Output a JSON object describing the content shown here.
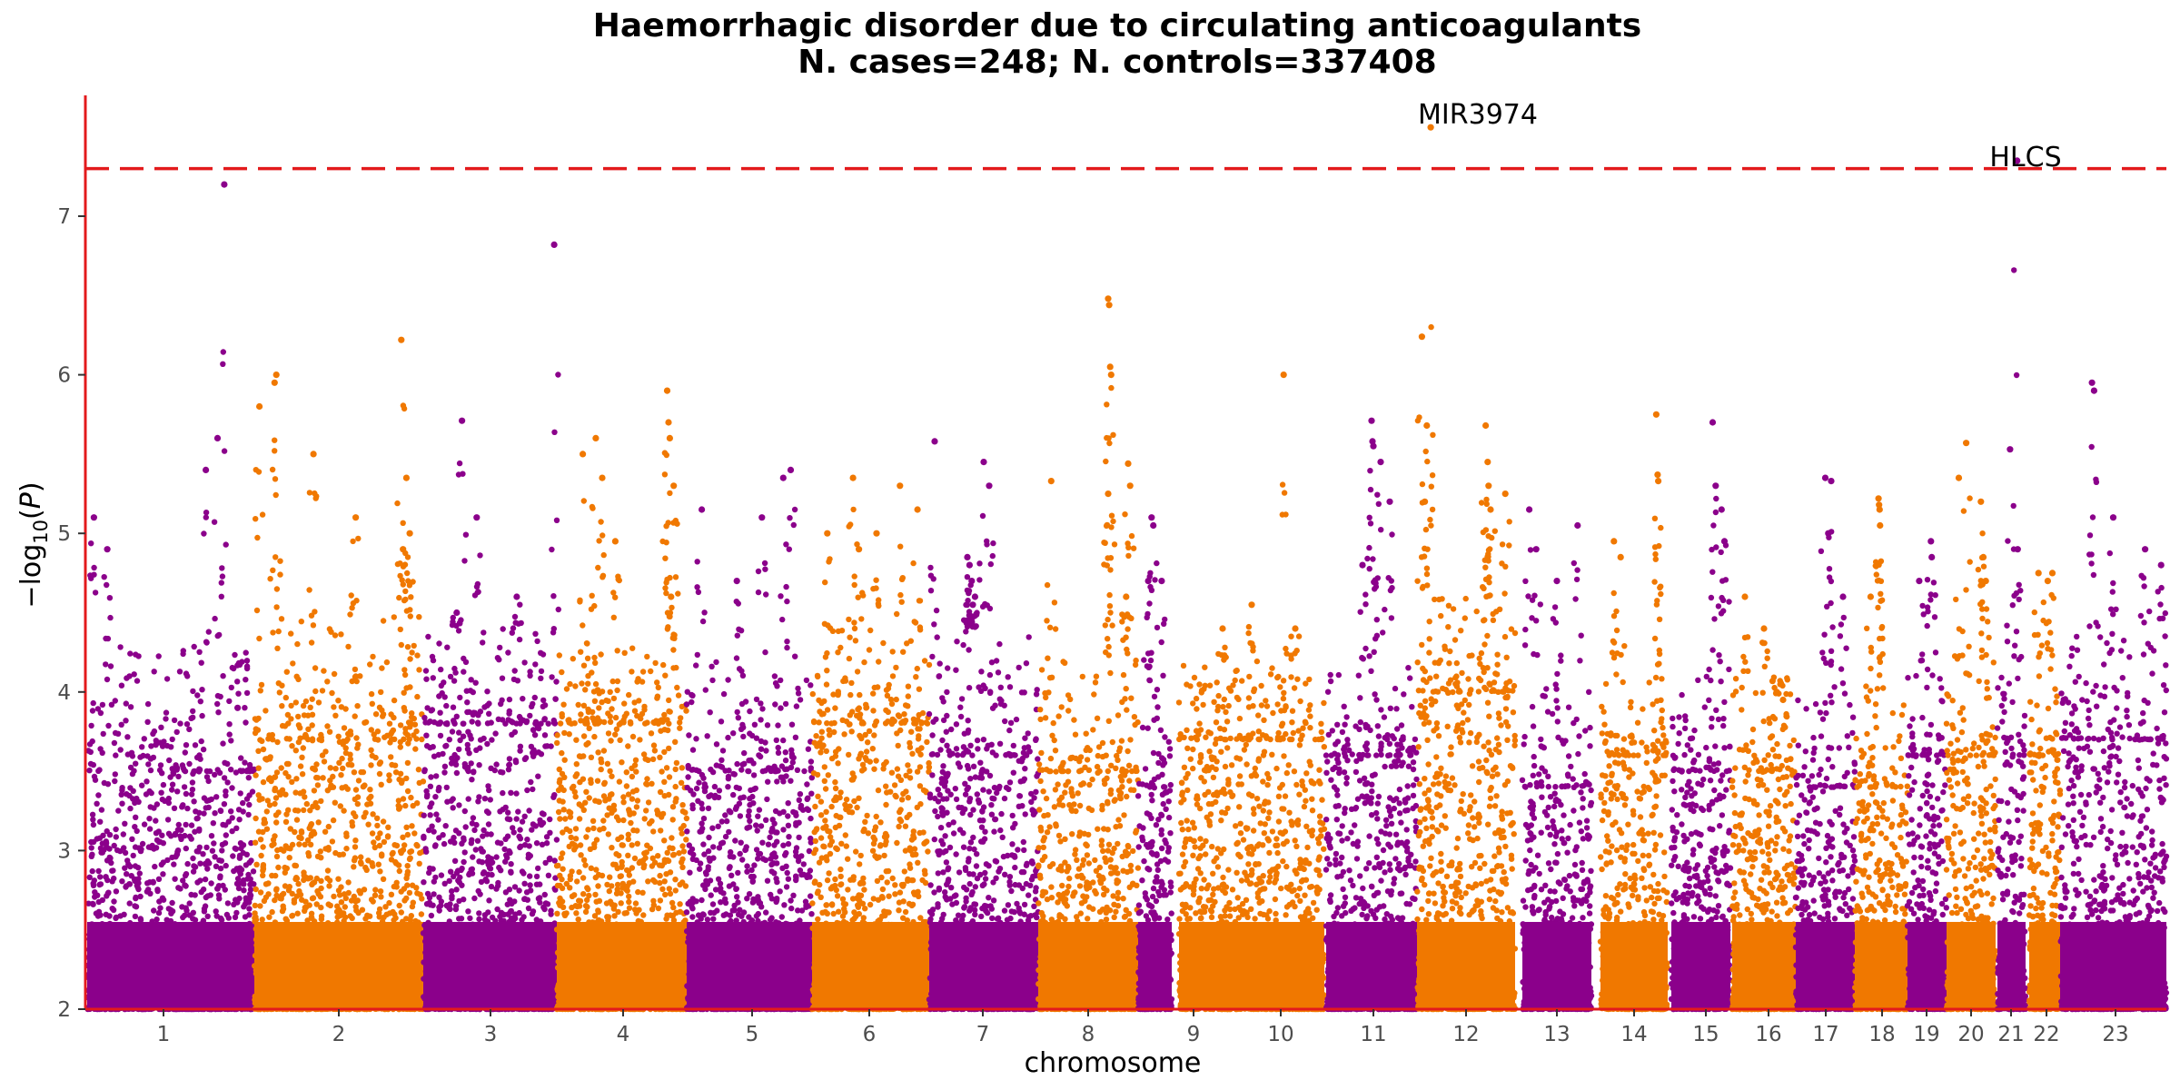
{
  "chart_data": {
    "type": "scatter",
    "subtype": "manhattan",
    "title": "Haemorrhagic disorder due to circulating anticoagulants",
    "subtitle": "N. cases=248; N. controls=337408",
    "xlabel": "chromosome",
    "ylabel": "−log10(P)",
    "ylim": [
      2,
      7.8
    ],
    "yticks": [
      "2",
      "3",
      "4",
      "5",
      "6",
      "7"
    ],
    "significance_threshold": 7.3,
    "threshold_color": "#e31a1c",
    "axis_color": "#e31a1c",
    "colors": {
      "odd": "#8b008b",
      "even": "#f07800"
    },
    "grid": false,
    "legend": "none",
    "chromosomes": [
      {
        "label": "1",
        "color": "odd",
        "floor_max": 3.5,
        "cap": 4.3,
        "peaks": [
          [
            0.04,
            5.1
          ],
          [
            0.12,
            4.9
          ],
          [
            0.78,
            5.6
          ],
          [
            0.82,
            7.2
          ],
          [
            0.71,
            5.4
          ],
          [
            0.9,
            3.9
          ]
        ]
      },
      {
        "label": "2",
        "color": "even",
        "floor_max": 3.7,
        "cap": 4.5,
        "peaks": [
          [
            0.03,
            5.8
          ],
          [
            0.12,
            5.95
          ],
          [
            0.13,
            6.0
          ],
          [
            0.35,
            5.5
          ],
          [
            0.6,
            5.1
          ],
          [
            0.87,
            6.22
          ],
          [
            0.9,
            5.35
          ],
          [
            0.92,
            5.0
          ],
          [
            0.88,
            4.9
          ]
        ]
      },
      {
        "label": "3",
        "color": "odd",
        "floor_max": 3.8,
        "cap": 4.4,
        "peaks": [
          [
            0.29,
            5.71
          ],
          [
            0.4,
            5.1
          ],
          [
            0.98,
            6.82
          ],
          [
            0.25,
            4.5
          ],
          [
            0.7,
            4.6
          ]
        ]
      },
      {
        "label": "4",
        "color": "even",
        "floor_max": 3.8,
        "cap": 4.3,
        "peaks": [
          [
            0.2,
            5.5
          ],
          [
            0.3,
            5.6
          ],
          [
            0.35,
            5.35
          ],
          [
            0.45,
            4.95
          ],
          [
            0.85,
            5.9
          ],
          [
            0.86,
            5.7
          ],
          [
            0.87,
            5.6
          ],
          [
            0.9,
            5.3
          ],
          [
            0.88,
            4.6
          ]
        ]
      },
      {
        "label": "5",
        "color": "odd",
        "floor_max": 3.5,
        "cap": 4.2,
        "peaks": [
          [
            0.12,
            5.15
          ],
          [
            0.6,
            5.1
          ],
          [
            0.77,
            5.35
          ],
          [
            0.83,
            5.4
          ],
          [
            0.4,
            4.7
          ]
        ]
      },
      {
        "label": "6",
        "color": "even",
        "floor_max": 3.8,
        "cap": 4.4,
        "peaks": [
          [
            0.13,
            5.0
          ],
          [
            0.35,
            5.35
          ],
          [
            0.4,
            4.9
          ],
          [
            0.55,
            5.0
          ],
          [
            0.75,
            5.3
          ],
          [
            0.9,
            5.15
          ]
        ]
      },
      {
        "label": "7",
        "color": "odd",
        "floor_max": 3.6,
        "cap": 4.4,
        "peaks": [
          [
            0.05,
            5.58
          ],
          [
            0.35,
            4.85
          ],
          [
            0.37,
            4.8
          ],
          [
            0.39,
            4.7
          ],
          [
            0.4,
            4.55
          ],
          [
            0.42,
            4.6
          ],
          [
            0.5,
            5.45
          ],
          [
            0.55,
            5.3
          ]
        ]
      },
      {
        "label": "8",
        "color": "even",
        "floor_max": 3.5,
        "cap": 4.2,
        "peaks": [
          [
            0.13,
            5.33
          ],
          [
            0.7,
            6.48
          ],
          [
            0.71,
            6.44
          ],
          [
            0.72,
            6.05
          ],
          [
            0.73,
            6.0
          ],
          [
            0.7,
            5.25
          ],
          [
            0.9,
            5.44
          ],
          [
            0.92,
            5.3
          ],
          [
            0.88,
            4.6
          ]
        ]
      },
      {
        "label": "9",
        "color": "odd",
        "floor_max": 3.4,
        "cap": 4.0,
        "peaks": [
          [
            0.4,
            5.1
          ],
          [
            0.45,
            5.05
          ],
          [
            0.3,
            4.7
          ],
          [
            0.7,
            4.7
          ]
        ]
      },
      {
        "label": "10",
        "color": "even",
        "floor_max": 3.7,
        "cap": 4.2,
        "peaks": [
          [
            0.5,
            4.55
          ],
          [
            0.72,
            6.0
          ],
          [
            0.8,
            4.4
          ],
          [
            0.3,
            4.4
          ]
        ]
      },
      {
        "label": "11",
        "color": "odd",
        "floor_max": 3.6,
        "cap": 4.2,
        "peaks": [
          [
            0.5,
            5.71
          ],
          [
            0.51,
            5.58
          ],
          [
            0.52,
            5.55
          ],
          [
            0.6,
            5.45
          ],
          [
            0.7,
            5.2
          ],
          [
            0.4,
            4.8
          ]
        ]
      },
      {
        "label": "12",
        "color": "even",
        "floor_max": 4.0,
        "cap": 4.6,
        "peaks": [
          [
            0.05,
            6.24
          ],
          [
            0.1,
            5.68
          ],
          [
            0.08,
            5.2
          ],
          [
            0.14,
            7.56
          ],
          [
            0.7,
            5.68
          ],
          [
            0.72,
            5.45
          ],
          [
            0.73,
            5.3
          ],
          [
            0.75,
            5.15
          ],
          [
            0.9,
            5.25
          ]
        ]
      },
      {
        "label": "13",
        "color": "odd",
        "floor_max": 3.4,
        "cap": 4.1,
        "peaks": [
          [
            0.1,
            5.15
          ],
          [
            0.2,
            4.9
          ],
          [
            0.8,
            5.05
          ],
          [
            0.5,
            4.7
          ]
        ]
      },
      {
        "label": "14",
        "color": "even",
        "floor_max": 3.6,
        "cap": 4.1,
        "peaks": [
          [
            0.2,
            4.95
          ],
          [
            0.3,
            4.85
          ],
          [
            0.83,
            5.75
          ],
          [
            0.85,
            5.37
          ],
          [
            0.86,
            5.33
          ]
        ]
      },
      {
        "label": "15",
        "color": "odd",
        "floor_max": 3.5,
        "cap": 4.1,
        "peaks": [
          [
            0.7,
            5.7
          ],
          [
            0.75,
            5.3
          ],
          [
            0.85,
            5.15
          ],
          [
            0.9,
            4.95
          ]
        ]
      },
      {
        "label": "16",
        "color": "even",
        "floor_max": 3.5,
        "cap": 4.1,
        "peaks": [
          [
            0.2,
            4.6
          ],
          [
            0.5,
            4.4
          ],
          [
            0.7,
            4.0
          ],
          [
            0.8,
            3.95
          ]
        ]
      },
      {
        "label": "17",
        "color": "odd",
        "floor_max": 3.4,
        "cap": 4.0,
        "peaks": [
          [
            0.5,
            5.35
          ],
          [
            0.6,
            5.33
          ],
          [
            0.55,
            5.0
          ],
          [
            0.8,
            4.6
          ]
        ]
      },
      {
        "label": "18",
        "color": "even",
        "floor_max": 3.4,
        "cap": 4.0,
        "peaks": [
          [
            0.45,
            5.22
          ],
          [
            0.46,
            5.18
          ],
          [
            0.47,
            5.15
          ],
          [
            0.48,
            5.05
          ],
          [
            0.3,
            4.6
          ]
        ]
      },
      {
        "label": "19",
        "color": "odd",
        "floor_max": 3.6,
        "cap": 4.1,
        "peaks": [
          [
            0.6,
            4.95
          ],
          [
            0.62,
            4.85
          ],
          [
            0.3,
            4.7
          ]
        ]
      },
      {
        "label": "20",
        "color": "even",
        "floor_max": 3.6,
        "cap": 4.2,
        "peaks": [
          [
            0.25,
            5.35
          ],
          [
            0.4,
            5.57
          ],
          [
            0.7,
            5.2
          ],
          [
            0.75,
            4.85
          ],
          [
            0.8,
            4.7
          ]
        ]
      },
      {
        "label": "21",
        "color": "odd",
        "floor_max": 3.6,
        "cap": 4.1,
        "peaks": [
          [
            0.45,
            5.53
          ],
          [
            0.7,
            7.35
          ],
          [
            0.72,
            4.9
          ]
        ]
      },
      {
        "label": "22",
        "color": "even",
        "floor_max": 3.6,
        "cap": 4.1,
        "peaks": [
          [
            0.3,
            4.75
          ],
          [
            0.6,
            4.7
          ],
          [
            0.75,
            4.75
          ]
        ]
      },
      {
        "label": "23",
        "color": "odd",
        "floor_max": 3.7,
        "cap": 4.4,
        "peaks": [
          [
            0.3,
            5.95
          ],
          [
            0.32,
            5.9
          ],
          [
            0.5,
            5.1
          ],
          [
            0.8,
            4.9
          ],
          [
            0.95,
            4.8
          ]
        ]
      }
    ],
    "annotations": [
      {
        "label": "MIR3974",
        "chromosome": "12"
      },
      {
        "label": "HLCS",
        "chromosome": "21"
      }
    ]
  }
}
